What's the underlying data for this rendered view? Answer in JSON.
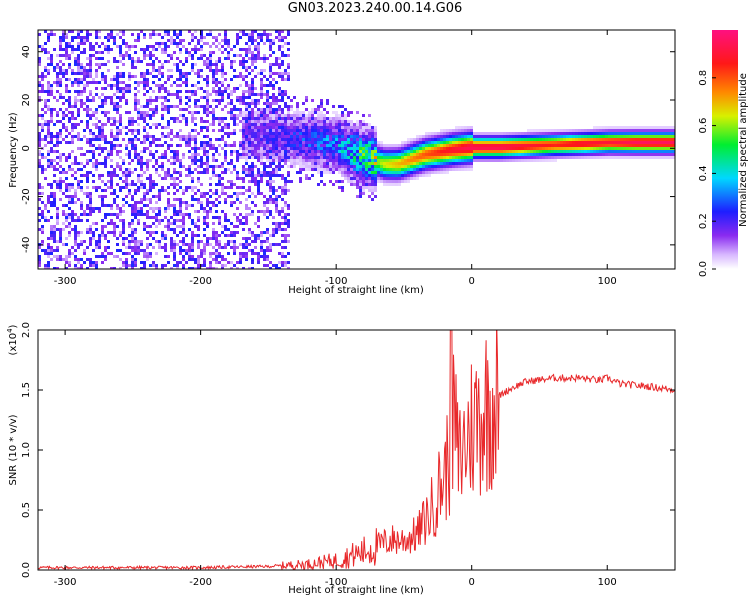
{
  "figure_title": "GN03.2023.240.00.14.G06",
  "colors": {
    "snr_line": "#e8282a",
    "axis": "#000000",
    "background": "#ffffff"
  },
  "chart_data": [
    {
      "type": "heatmap",
      "title": "GN03.2023.240.00.14.G06",
      "xlabel": "Height of straight line (km)",
      "ylabel": "Frequency (Hz)",
      "xlim": [
        -320,
        150
      ],
      "ylim": [
        -50,
        49
      ],
      "xticks": [
        -300,
        -200,
        -100,
        0,
        100
      ],
      "xtick_labels": [
        "-300",
        "-200",
        "-100",
        "0",
        "100"
      ],
      "yticks": [
        -40,
        -20,
        0,
        20,
        40
      ],
      "ytick_labels": [
        "-40",
        "-20",
        "0",
        "20",
        "40"
      ],
      "colorbar": {
        "label": "Normalized spectral amplitude",
        "range": [
          0,
          1
        ],
        "ticks": [
          0.0,
          0.2,
          0.4,
          0.6,
          0.8
        ],
        "tick_labels": [
          "0.0",
          "0.2",
          "0.4",
          "0.6",
          "0.8"
        ],
        "colormap": "rainbow (white-violet-blue-cyan-green-yellow-orange-red-magenta)"
      },
      "ridge": {
        "x": [
          -160,
          -140,
          -120,
          -100,
          -85,
          -75,
          -65,
          -55,
          -45,
          -35,
          -25,
          -15,
          0,
          20,
          40,
          60,
          80,
          100,
          120,
          150
        ],
        "frequency": [
          6,
          5,
          4,
          2,
          -2,
          -4,
          -6,
          -6,
          -4,
          -2,
          -1,
          0,
          1,
          1,
          1.5,
          2,
          2.5,
          3,
          3,
          3
        ],
        "amplitude": [
          0.15,
          0.2,
          0.25,
          0.3,
          0.45,
          0.55,
          0.65,
          0.7,
          0.75,
          0.8,
          0.85,
          0.9,
          0.95,
          0.95,
          0.9,
          0.85,
          0.9,
          0.9,
          0.95,
          0.95
        ]
      },
      "noise_region_x": [
        -320,
        -135
      ],
      "noise_level": 0.15
    },
    {
      "type": "line",
      "xlabel": "Height of straight line (km)",
      "ylabel": "SNR (10 * v/v)",
      "scale_label": "(x10",
      "scale_exponent": "4",
      "scale_close": ")",
      "xlim": [
        -320,
        150
      ],
      "ylim": [
        0,
        2
      ],
      "xticks": [
        -300,
        -200,
        -100,
        0,
        100
      ],
      "xtick_labels": [
        "-300",
        "-200",
        "-100",
        "0",
        "100"
      ],
      "yticks": [
        0.0,
        0.5,
        1.0,
        1.5,
        2.0
      ],
      "ytick_labels": [
        "0.0",
        "0.5",
        "1.0",
        "1.5",
        "2.0"
      ],
      "series": [
        {
          "x": [
            -320,
            -250,
            -200,
            -150,
            -120,
            -100,
            -80,
            -70,
            -60,
            -50,
            -40,
            -30,
            -20,
            -15,
            -13,
            -10,
            0,
            10,
            20,
            30,
            40,
            60,
            80,
            95,
            100,
            110,
            130,
            150
          ],
          "y": [
            0.02,
            0.02,
            0.02,
            0.03,
            0.05,
            0.08,
            0.15,
            0.2,
            0.25,
            0.25,
            0.3,
            0.5,
            0.8,
            1.0,
            1.3,
            0.9,
            1.2,
            1.35,
            1.45,
            1.52,
            1.57,
            1.6,
            1.6,
            1.58,
            1.6,
            1.55,
            1.53,
            1.5
          ]
        }
      ],
      "grid": false
    }
  ]
}
